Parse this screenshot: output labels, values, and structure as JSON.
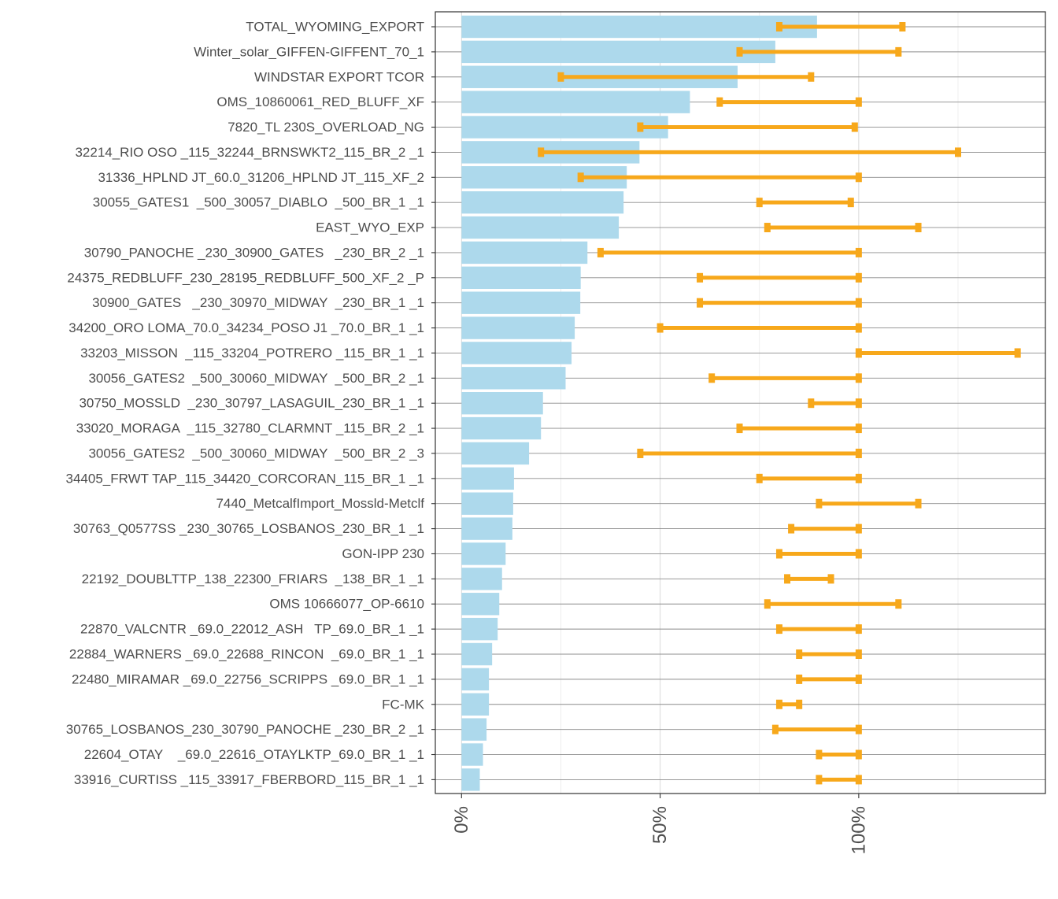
{
  "chart_data": {
    "type": "bar",
    "orientation": "horizontal",
    "title": "",
    "xlabel": "",
    "ylabel": "",
    "xlim": [
      -0.066,
      1.47
    ],
    "x_ticks": [
      0,
      0.5,
      1.0
    ],
    "x_tick_labels": [
      "0%",
      "50%",
      "100%"
    ],
    "grid": true,
    "legend": "none",
    "colors": {
      "bar": "#add9ec",
      "range": "#f7a81b",
      "grid_major": "#8c8c8c",
      "grid_minor": "#ebebeb",
      "text": "#4d4d4d",
      "panel_border": "#333333"
    },
    "categories": [
      "TOTAL_WYOMING_EXPORT",
      "Winter_solar_GIFFEN-GIFFENT_70_1",
      "WINDSTAR EXPORT TCOR",
      "OMS_10860061_RED_BLUFF_XF",
      "7820_TL 230S_OVERLOAD_NG",
      "32214_RIO OSO _115_32244_BRNSWKT2_115_BR_2 _1",
      "31336_HPLND JT_60.0_31206_HPLND JT_115_XF_2",
      "30055_GATES1  _500_30057_DIABLO  _500_BR_1 _1",
      "EAST_WYO_EXP",
      "30790_PANOCHE _230_30900_GATES   _230_BR_2 _1",
      "24375_REDBLUFF_230_28195_REDBLUFF_500_XF_2 _P",
      "30900_GATES   _230_30970_MIDWAY  _230_BR_1 _1",
      "34200_ORO LOMA_70.0_34234_POSO J1 _70.0_BR_1 _1",
      "33203_MISSON  _115_33204_POTRERO _115_BR_1 _1",
      "30056_GATES2  _500_30060_MIDWAY  _500_BR_2 _1",
      "30750_MOSSLD  _230_30797_LASAGUIL_230_BR_1 _1",
      "33020_MORAGA  _115_32780_CLARMNT _115_BR_2 _1",
      "30056_GATES2  _500_30060_MIDWAY  _500_BR_2 _3",
      "34405_FRWT TAP_115_34420_CORCORAN_115_BR_1 _1",
      "7440_MetcalfImport_Mossld-Metclf",
      "30763_Q0577SS _230_30765_LOSBANOS_230_BR_1 _1",
      "GON-IPP 230",
      "22192_DOUBLTTP_138_22300_FRIARS  _138_BR_1 _1",
      "OMS 10666077_OP-6610",
      "22870_VALCNTR _69.0_22012_ASH   TP_69.0_BR_1 _1",
      "22884_WARNERS _69.0_22688_RINCON  _69.0_BR_1 _1",
      "22480_MIRAMAR _69.0_22756_SCRIPPS _69.0_BR_1 _1",
      "FC-MK",
      "30765_LOSBANOS_230_30790_PANOCHE _230_BR_2 _1",
      "22604_OTAY    _69.0_22616_OTAYLKTP_69.0_BR_1 _1",
      "33916_CURTISS _115_33917_FBERBORD_115_BR_1 _1"
    ],
    "values": [
      0.895,
      0.79,
      0.695,
      0.575,
      0.52,
      0.448,
      0.416,
      0.408,
      0.396,
      0.317,
      0.3,
      0.299,
      0.285,
      0.277,
      0.262,
      0.205,
      0.2,
      0.17,
      0.132,
      0.13,
      0.128,
      0.111,
      0.102,
      0.095,
      0.091,
      0.077,
      0.069,
      0.069,
      0.063,
      0.054,
      0.046
    ],
    "ranges": [
      [
        0.8,
        1.11
      ],
      [
        0.7,
        1.1
      ],
      [
        0.25,
        0.88
      ],
      [
        0.65,
        1.0
      ],
      [
        0.45,
        0.99
      ],
      [
        0.2,
        1.25
      ],
      [
        0.3,
        1.0
      ],
      [
        0.75,
        0.98
      ],
      [
        0.77,
        1.15
      ],
      [
        0.35,
        1.0
      ],
      [
        0.6,
        1.0
      ],
      [
        0.6,
        1.0
      ],
      [
        0.5,
        1.0
      ],
      [
        1.0,
        1.4
      ],
      [
        0.63,
        1.0
      ],
      [
        0.88,
        1.0
      ],
      [
        0.7,
        1.0
      ],
      [
        0.45,
        1.0
      ],
      [
        0.75,
        1.0
      ],
      [
        0.9,
        1.15
      ],
      [
        0.83,
        1.0
      ],
      [
        0.8,
        1.0
      ],
      [
        0.82,
        0.93
      ],
      [
        0.77,
        1.1
      ],
      [
        0.8,
        1.0
      ],
      [
        0.85,
        1.0
      ],
      [
        0.85,
        1.0
      ],
      [
        0.8,
        0.85
      ],
      [
        0.79,
        1.0
      ],
      [
        0.9,
        1.0
      ],
      [
        0.9,
        1.0
      ]
    ]
  }
}
